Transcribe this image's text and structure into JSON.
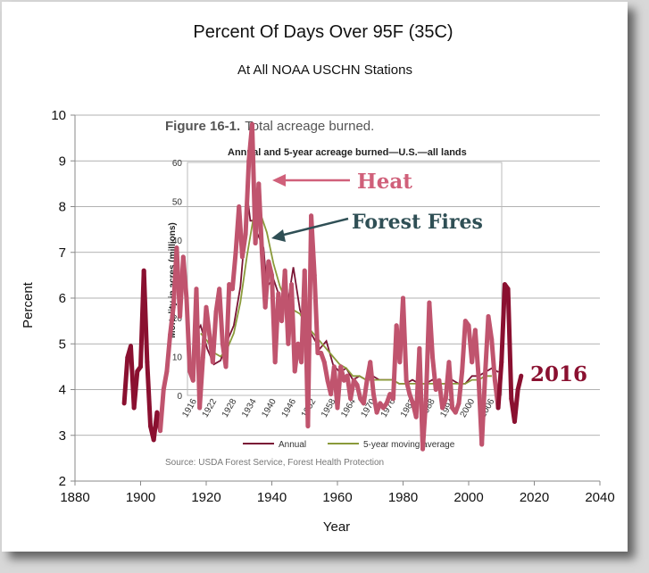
{
  "chart_data": {
    "type": "line",
    "title": "Percent Of Days Over 95F (35C)",
    "subtitle": "At All NOAA USCHN Stations",
    "xlabel": "Year",
    "ylabel": "Percent",
    "xlim": [
      1880,
      2040
    ],
    "ylim": [
      2,
      10
    ],
    "x_ticks": [
      "1880",
      "1900",
      "1920",
      "1940",
      "1960",
      "1980",
      "2000",
      "2020",
      "2040"
    ],
    "y_ticks": [
      "2",
      "3",
      "4",
      "5",
      "6",
      "7",
      "8",
      "9",
      "10"
    ],
    "grid": "horizontal",
    "colors": {
      "heat": "#c0546e",
      "heat_dark": "#8a1030",
      "fires": "#2f4f55",
      "annual": "#7a1535",
      "moving_avg": "#8a9a3a"
    },
    "series": [
      {
        "x": [
          1895,
          1896,
          1897,
          1898,
          1899,
          1900,
          1901,
          1902,
          1903,
          1904,
          1905,
          1906,
          1907,
          1908,
          1909,
          1910,
          1911,
          1912,
          1913,
          1914,
          1915,
          1916,
          1917,
          1918,
          1919,
          1920,
          1921,
          1922,
          1923,
          1924,
          1925,
          1926,
          1927,
          1928,
          1929,
          1930,
          1931,
          1932,
          1933,
          1934,
          1935,
          1936,
          1937,
          1938,
          1939,
          1940,
          1941,
          1942,
          1943,
          1944,
          1945,
          1946,
          1947,
          1948,
          1949,
          1950,
          1951,
          1952,
          1953,
          1954,
          1955,
          1956,
          1957,
          1958,
          1959,
          1960,
          1961,
          1962,
          1963,
          1964,
          1965,
          1966,
          1967,
          1968,
          1969,
          1970,
          1971,
          1972,
          1973,
          1974,
          1975,
          1976,
          1977,
          1978,
          1979,
          1980,
          1981,
          1982,
          1983,
          1984,
          1985,
          1986,
          1987,
          1988,
          1989,
          1990,
          1991,
          1992,
          1993,
          1994,
          1995,
          1996,
          1997,
          1998,
          1999,
          2000,
          2001,
          2002,
          2003,
          2004,
          2005,
          2006,
          2007,
          2008,
          2009,
          2010,
          2011,
          2012,
          2013,
          2014,
          2015,
          2016
        ],
        "values": [
          3.7,
          4.7,
          4.95,
          3.6,
          4.4,
          4.5,
          6.6,
          4.6,
          3.2,
          2.9,
          3.5,
          3.1,
          4.0,
          4.4,
          5.2,
          5.8,
          7.1,
          5.6,
          6.9,
          6.0,
          4.4,
          4.2,
          6.2,
          3.6,
          4.7,
          5.8,
          5.2,
          4.6,
          5.7,
          6.2,
          5.0,
          4.5,
          6.3,
          6.2,
          7.0,
          8.0,
          6.9,
          7.4,
          9.0,
          9.8,
          7.2,
          8.5,
          7.0,
          5.8,
          6.8,
          6.5,
          4.6,
          6.1,
          5.5,
          6.6,
          5.0,
          6.3,
          4.4,
          5.0,
          4.6,
          6.6,
          3.2,
          7.8,
          6.5,
          4.8,
          4.8,
          4.6,
          4.2,
          3.9,
          4.5,
          3.6,
          4.5,
          4.2,
          4.3,
          3.8,
          4.2,
          4.1,
          3.8,
          3.7,
          4.2,
          4.6,
          3.9,
          3.5,
          3.7,
          3.6,
          3.7,
          3.9,
          3.8,
          5.4,
          4.6,
          6.0,
          4.2,
          3.9,
          3.7,
          3.4,
          4.9,
          2.7,
          3.8,
          5.9,
          4.7,
          4.0,
          4.2,
          3.6,
          3.8,
          4.6,
          3.6,
          3.5,
          3.7,
          4.4,
          5.5,
          5.4,
          4.6,
          5.3,
          4.3,
          2.8,
          4.3,
          5.6,
          5.1,
          4.2,
          3.6,
          4.6,
          6.3,
          6.2,
          3.8,
          3.3,
          4.0,
          4.3
        ]
      }
    ],
    "annotations": {
      "heat": "Heat",
      "forest_fires": "Forest Fires",
      "year_2016": "2016"
    },
    "inset": {
      "figure_number": "Figure 16-1.",
      "title": "Total acreage burned.",
      "subtitle": "Annual and 5-year acreage burned—U.S.—all lands",
      "ylabel": "Mortality in acres (millions)",
      "ylim": [
        0,
        60
      ],
      "y_ticks": [
        "0",
        "10",
        "20",
        "30",
        "40",
        "50",
        "60"
      ],
      "x_ticks": [
        "1916",
        "1922",
        "1928",
        "1934",
        "1940",
        "1946",
        "1952",
        "1958",
        "1964",
        "1970",
        "1976",
        "1982",
        "1988",
        "1994",
        "2000",
        "2006"
      ],
      "legend": [
        "Annual",
        "5-year moving average"
      ],
      "source": "Source: USDA Forest Service, Forest Health Protection",
      "series": [
        {
          "name": "Annual",
          "x": [
            1916,
            1918,
            1920,
            1922,
            1924,
            1926,
            1928,
            1930,
            1931,
            1932,
            1933,
            1934,
            1935,
            1936,
            1937,
            1938,
            1940,
            1942,
            1944,
            1946,
            1948,
            1950,
            1952,
            1954,
            1956,
            1958,
            1960,
            1962,
            1964,
            1966,
            1968,
            1970,
            1972,
            1974,
            1976,
            1978,
            1980,
            1982,
            1984,
            1986,
            1988,
            1990,
            1992,
            1994,
            1996,
            1998,
            2000,
            2002,
            2004,
            2006,
            2008
          ],
          "values": [
            15,
            18,
            12,
            8,
            9,
            14,
            18,
            28,
            38,
            52,
            45,
            45,
            42,
            40,
            38,
            28,
            30,
            25,
            22,
            33,
            22,
            18,
            15,
            12,
            14,
            8,
            6,
            7,
            4,
            5,
            4,
            5,
            4,
            4,
            4,
            3,
            3,
            4,
            3,
            3,
            4,
            3,
            3,
            4,
            3,
            3,
            5,
            5,
            6,
            7,
            6
          ]
        },
        {
          "name": "5-year moving average",
          "x": [
            1918,
            1920,
            1922,
            1924,
            1926,
            1928,
            1930,
            1932,
            1934,
            1936,
            1938,
            1940,
            1942,
            1944,
            1946,
            1948,
            1950,
            1952,
            1954,
            1956,
            1958,
            1960,
            1962,
            1964,
            1966,
            1968,
            1970,
            1972,
            1974,
            1976,
            1978,
            1980,
            1982,
            1984,
            1986,
            1988,
            1990,
            1992,
            1994,
            1996,
            1998,
            2000,
            2002,
            2004,
            2006
          ],
          "values": [
            16,
            14,
            11,
            10,
            12,
            16,
            24,
            36,
            46,
            47,
            42,
            34,
            28,
            24,
            22,
            21,
            18,
            16,
            14,
            12,
            10,
            8,
            7,
            5,
            5,
            4,
            4,
            4,
            4,
            4,
            3,
            3,
            3,
            3,
            3,
            3,
            3,
            3,
            3,
            3,
            3,
            4,
            4,
            5,
            5
          ]
        }
      ]
    }
  }
}
